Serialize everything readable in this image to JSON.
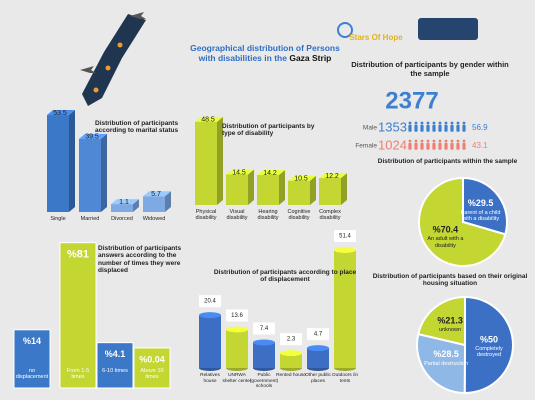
{
  "header": {
    "title": "Geographical distribution of Persons",
    "title_line2": "with disabilities in the",
    "title_emphasis": "Gaza Strip",
    "logo_text": "Stars Of Hope"
  },
  "gender": {
    "title": "Distribution of participants by gender within the sample",
    "total": 2377,
    "groups": [
      {
        "name": "Male",
        "count": 1353,
        "percent": 56.9,
        "color": "#3d7fd0"
      },
      {
        "name": "Female",
        "count": 1024,
        "percent": 43.1,
        "color": "#ee7f73"
      }
    ]
  },
  "chart_data": [
    {
      "type": "bar",
      "title": "Distribution of participants according to marital status",
      "categories": [
        "Single",
        "Married",
        "Divorced",
        "Widowed"
      ],
      "values": [
        53.5,
        39.5,
        1.1,
        5.7
      ],
      "colors": [
        "#3b78c8",
        "#4f88d4",
        "#7fa9e2",
        "#7fa9e2"
      ]
    },
    {
      "type": "bar",
      "title": "Distribution of participants by type of disability",
      "categories": [
        "Physical disability",
        "Visual disability",
        "Hearing disability",
        "Cognitive disability",
        "Complex disability"
      ],
      "values": [
        48.5,
        14.5,
        14.2,
        10.5,
        12.2
      ],
      "colors": [
        "#c3d631",
        "#c3d631",
        "#c3d631",
        "#c3d631",
        "#c3d631"
      ]
    },
    {
      "type": "pie",
      "title": "Distribution of participants within the sample",
      "categories": [
        "Parent of a child with a disability",
        "An adult with a disability"
      ],
      "values": [
        29.5,
        70.4
      ],
      "value_labels": [
        "%29.5",
        "%70.4"
      ],
      "colors": [
        "#3b70c4",
        "#c3d631"
      ]
    },
    {
      "type": "flatbar",
      "title": "Distribution of participants answers according to the number of times they were displaced",
      "categories": [
        "no displacement",
        "From 1-5 times",
        "6-10 times",
        "Above 10 times"
      ],
      "values": [
        14,
        81,
        4.1,
        0.04
      ],
      "value_labels": [
        "%14",
        "%81",
        "%4.1",
        "%0.04"
      ],
      "colors": [
        "#3b78c8",
        "#c3d631",
        "#3b78c8",
        "#c3d631"
      ]
    },
    {
      "type": "cylinder",
      "title": "Distribution of participants according to place of displacement",
      "categories": [
        "Relatives house",
        "UNRWA shelter center",
        "Public (government) schools",
        "Rented house",
        "Other public places",
        "Outdoors /in tents"
      ],
      "values": [
        20.4,
        13.6,
        7.4,
        2.3,
        4.7,
        51.4
      ],
      "colors": [
        "#3c6fc4",
        "#c3d631",
        "#3c6fc4",
        "#c3d631",
        "#3c6fc4",
        "#c3d631"
      ]
    },
    {
      "type": "pie",
      "title": "Distribution of participants based on their original housing situation",
      "categories": [
        "Completely destroyed",
        "Partial destruction",
        "unknown"
      ],
      "values": [
        50,
        28.5,
        21.3
      ],
      "value_labels": [
        "%50",
        "%28.5",
        "%21.3"
      ],
      "colors": [
        "#3b70c4",
        "#8fb8e6",
        "#c3d631"
      ]
    }
  ]
}
